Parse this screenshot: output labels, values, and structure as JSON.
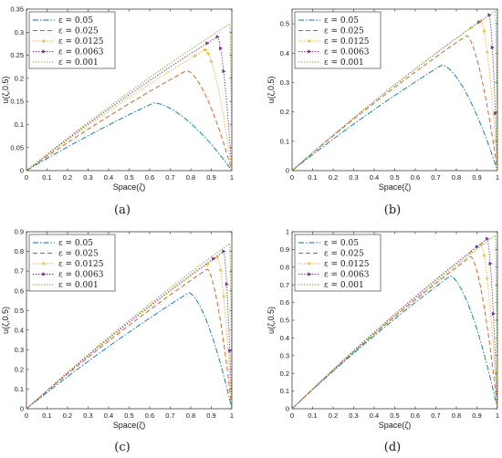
{
  "chart_data": [
    {
      "type": "line",
      "caption": "(a)",
      "xlabel": "Space(ζ)",
      "ylabel": "u(ζ,0.5)",
      "xlim": [
        0,
        1
      ],
      "ylim": [
        0,
        0.35
      ],
      "xticks": [
        "0",
        "0.1",
        "0.2",
        "0.3",
        "0.4",
        "0.5",
        "0.6",
        "0.7",
        "0.8",
        "0.9",
        "1"
      ],
      "yticks": [
        "0",
        "0.05",
        "0.1",
        "0.15",
        "0.2",
        "0.25",
        "0.3",
        "0.35"
      ],
      "legend_position": "top-left",
      "series": [
        {
          "name": "ε = 0.05",
          "peak_x": 0.62,
          "peak_y": 0.147
        },
        {
          "name": "ε = 0.025",
          "peak_x": 0.78,
          "peak_y": 0.217
        },
        {
          "name": "ε = 0.0125",
          "peak_x": 0.87,
          "peak_y": 0.262
        },
        {
          "name": "ε = 0.0063",
          "peak_x": 0.93,
          "peak_y": 0.29
        },
        {
          "name": "ε = 0.001",
          "peak_x": 0.99,
          "peak_y": 0.318
        }
      ]
    },
    {
      "type": "line",
      "caption": "(b)",
      "xlabel": "Space(ζ)",
      "ylabel": "u(ζ,0.5)",
      "xlim": [
        0,
        1
      ],
      "ylim": [
        0,
        0.55
      ],
      "xticks": [
        "0",
        "0.1",
        "0.2",
        "0.3",
        "0.4",
        "0.5",
        "0.6",
        "0.7",
        "0.8",
        "0.9",
        "1"
      ],
      "yticks": [
        "0",
        "0.1",
        "0.2",
        "0.3",
        "0.4",
        "0.5"
      ],
      "legend_position": "top-left",
      "series": [
        {
          "name": "ε = 0.05",
          "peak_x": 0.73,
          "peak_y": 0.36
        },
        {
          "name": "ε = 0.025",
          "peak_x": 0.85,
          "peak_y": 0.46
        },
        {
          "name": "ε = 0.0125",
          "peak_x": 0.92,
          "peak_y": 0.51
        },
        {
          "name": "ε = 0.0063",
          "peak_x": 0.96,
          "peak_y": 0.53
        },
        {
          "name": "ε = 0.001",
          "peak_x": 0.99,
          "peak_y": 0.545
        }
      ]
    },
    {
      "type": "line",
      "caption": "(c)",
      "xlabel": "Space(ζ)",
      "ylabel": "u(ζ,0.5)",
      "xlim": [
        0,
        1
      ],
      "ylim": [
        0,
        0.9
      ],
      "xticks": [
        "0",
        "0.1",
        "0.2",
        "0.3",
        "0.4",
        "0.5",
        "0.6",
        "0.7",
        "0.8",
        "0.9",
        "1"
      ],
      "yticks": [
        "0",
        "0.1",
        "0.2",
        "0.3",
        "0.4",
        "0.5",
        "0.6",
        "0.7",
        "0.8",
        "0.9"
      ],
      "legend_position": "top-left",
      "series": [
        {
          "name": "ε = 0.05",
          "peak_x": 0.79,
          "peak_y": 0.59
        },
        {
          "name": "ε = 0.025",
          "peak_x": 0.88,
          "peak_y": 0.71
        },
        {
          "name": "ε = 0.0125",
          "peak_x": 0.93,
          "peak_y": 0.77
        },
        {
          "name": "ε = 0.0063",
          "peak_x": 0.96,
          "peak_y": 0.8
        },
        {
          "name": "ε = 0.001",
          "peak_x": 0.99,
          "peak_y": 0.84
        }
      ]
    },
    {
      "type": "line",
      "caption": "(d)",
      "xlabel": "Space(ζ)",
      "ylabel": "u(ζ,0.5)",
      "xlim": [
        0,
        1
      ],
      "ylim": [
        0,
        1
      ],
      "xticks": [
        "0",
        "0.1",
        "0.2",
        "0.3",
        "0.4",
        "0.5",
        "0.6",
        "0.7",
        "0.8",
        "0.9",
        "1"
      ],
      "yticks": [
        "0",
        "0.1",
        "0.2",
        "0.3",
        "0.4",
        "0.5",
        "0.6",
        "0.7",
        "0.8",
        "0.9",
        "1"
      ],
      "legend_position": "top-left",
      "series": [
        {
          "name": "ε = 0.05",
          "peak_x": 0.77,
          "peak_y": 0.75
        },
        {
          "name": "ε = 0.025",
          "peak_x": 0.87,
          "peak_y": 0.86
        },
        {
          "name": "ε = 0.0125",
          "peak_x": 0.92,
          "peak_y": 0.93
        },
        {
          "name": "ε = 0.0063",
          "peak_x": 0.95,
          "peak_y": 0.96
        },
        {
          "name": "ε = 0.001",
          "peak_x": 0.99,
          "peak_y": 0.98
        }
      ]
    }
  ],
  "series_styles": [
    {
      "color": "#0072BD",
      "dash": "6,2,1.5,2",
      "marker": "none"
    },
    {
      "color": "#D95319",
      "dash": "5,3",
      "marker": "none"
    },
    {
      "color": "#EDB120",
      "dash": "1.4,1.6",
      "marker": "star"
    },
    {
      "color": "#7E2F8E",
      "dash": "1.4,1.6",
      "marker": "triangle"
    },
    {
      "color": "#77AC30",
      "dash": "1.4,1.6",
      "marker": "none"
    }
  ]
}
